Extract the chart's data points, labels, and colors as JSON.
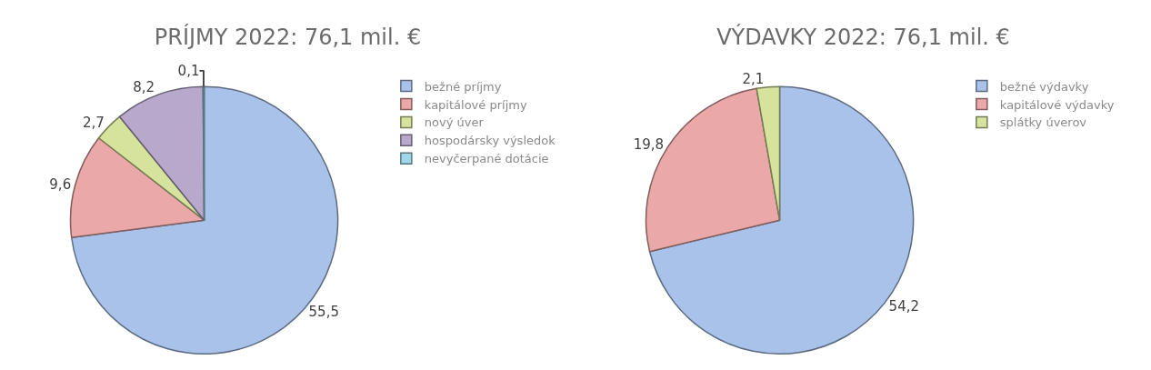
{
  "chart_data": [
    {
      "type": "pie",
      "title": "PRÍJMY 2022: 76,1 mil. €",
      "categories": [
        "bežné príjmy",
        "kapitálové príjmy",
        "nový úver",
        "hospodársky výsledok",
        "nevyčerpané dotácie"
      ],
      "values": [
        55.5,
        9.6,
        2.7,
        8.2,
        0.1
      ],
      "value_labels": [
        "55,5",
        "9,6",
        "2,7",
        "8,2",
        "0,1"
      ],
      "colors": [
        "#a9c2ea",
        "#eaa9a8",
        "#d5e39c",
        "#b8a9cc",
        "#9fd7ea"
      ],
      "legend": "right"
    },
    {
      "type": "pie",
      "title": "VÝDAVKY 2022: 76,1 mil. €",
      "categories": [
        "bežné výdavky",
        "kapitálové výdavky",
        "splátky úverov"
      ],
      "values": [
        54.2,
        19.8,
        2.1
      ],
      "value_labels": [
        "54,2",
        "19,8",
        "2,1"
      ],
      "colors": [
        "#a9c2ea",
        "#eaa9a8",
        "#d5e39c"
      ],
      "legend": "right"
    }
  ]
}
